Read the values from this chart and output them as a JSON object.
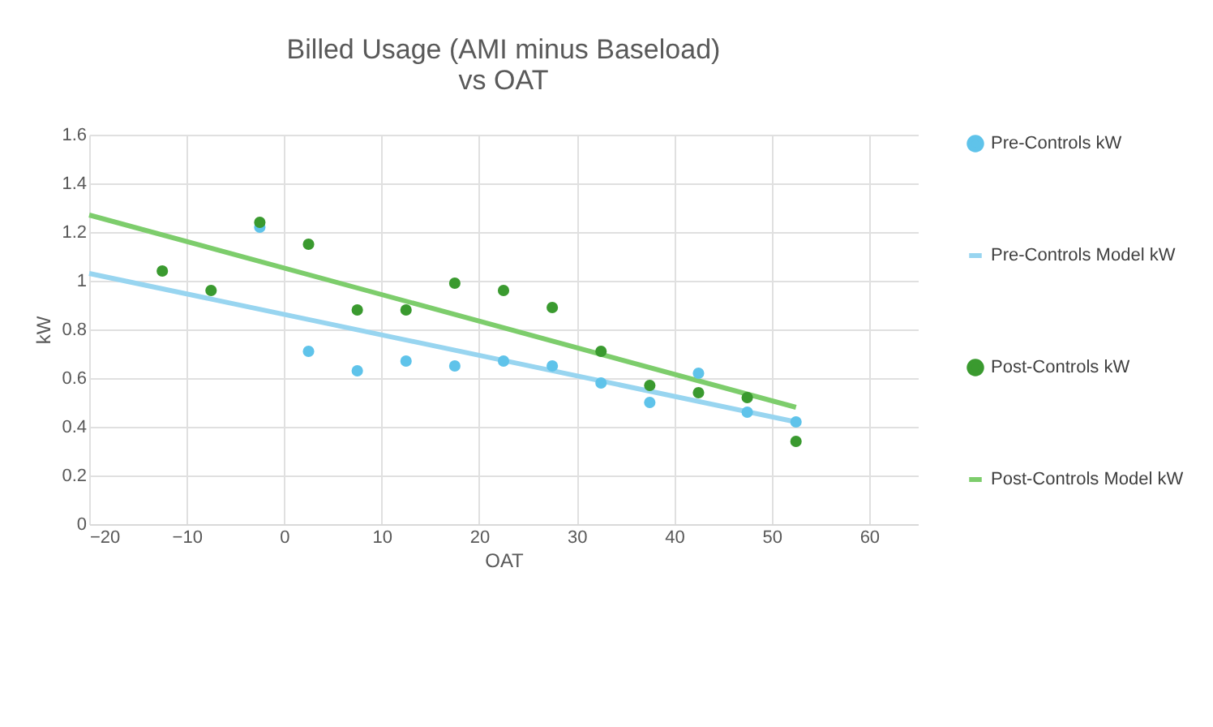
{
  "chart_data": {
    "type": "scatter",
    "title": "Billed Usage (AMI minus Baseload)\nvs OAT",
    "xlabel": "OAT",
    "ylabel": "kW",
    "xlim": [
      -20,
      65
    ],
    "xticks": [
      -20,
      -10,
      0,
      10,
      20,
      30,
      40,
      50,
      60
    ],
    "ylim": [
      0,
      1.6
    ],
    "yticks": [
      0,
      0.2,
      0.4,
      0.6,
      0.8,
      1,
      1.2,
      1.4,
      1.6
    ],
    "grid": true,
    "legend": "right",
    "series": [
      {
        "name": "Pre-Controls kW",
        "marker": "circle",
        "color": "#5fc3ea",
        "x": [
          -2.5,
          2.5,
          7.5,
          12.5,
          17.5,
          22.5,
          27.5,
          32.5,
          37.5,
          42.5,
          47.5,
          52.5
        ],
        "values": [
          1.22,
          0.71,
          0.63,
          0.67,
          0.65,
          0.67,
          0.65,
          0.58,
          0.5,
          0.62,
          0.46,
          0.42
        ]
      },
      {
        "name": "Pre-Controls Model kW",
        "type": "line",
        "marker": "none",
        "line_style": "solid",
        "color": "#98d5f0",
        "x": [
          -20,
          52.5
        ],
        "values": [
          1.03,
          0.42
        ]
      },
      {
        "name": "Post-Controls kW",
        "marker": "circle",
        "color": "#3a9a2f",
        "x": [
          -12.5,
          -7.5,
          -2.5,
          2.5,
          7.5,
          12.5,
          17.5,
          22.5,
          27.5,
          32.5,
          37.5,
          42.5,
          47.5,
          52.5
        ],
        "values": [
          1.04,
          0.96,
          1.24,
          1.15,
          0.88,
          0.88,
          0.99,
          0.96,
          0.89,
          0.71,
          0.57,
          0.54,
          0.52,
          0.34
        ]
      },
      {
        "name": "Post-Controls Model kW",
        "type": "line",
        "marker": "none",
        "line_style": "solid",
        "color": "#7dcd6c",
        "x": [
          -20,
          52.5
        ],
        "values": [
          1.27,
          0.48
        ]
      }
    ]
  }
}
